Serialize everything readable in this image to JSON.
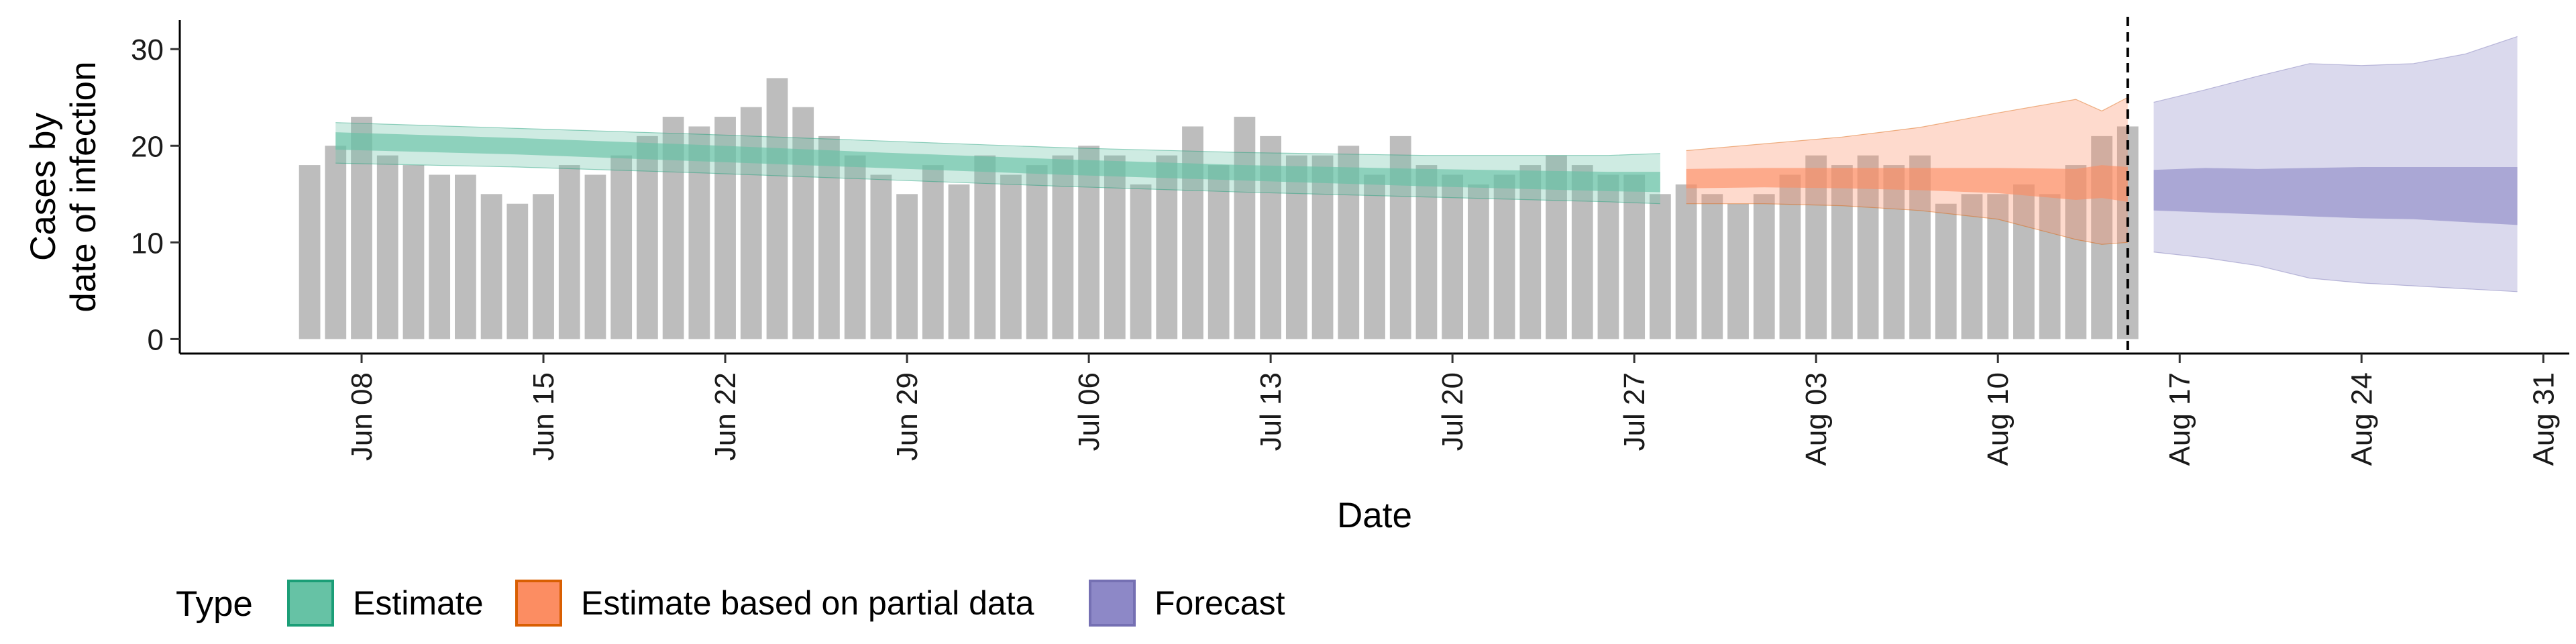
{
  "chart_data": {
    "type": "bar",
    "title": "",
    "xlabel": "Date",
    "ylabel": [
      "Cases by",
      "date of infection"
    ],
    "ylim": [
      -1.5,
      33
    ],
    "yticks": [
      0,
      10,
      20,
      30
    ],
    "xlim": [
      "2020-06-01",
      "2020-09-01"
    ],
    "xticks": [
      {
        "date": "2020-06-08",
        "label": "Jun 08"
      },
      {
        "date": "2020-06-15",
        "label": "Jun 15"
      },
      {
        "date": "2020-06-22",
        "label": "Jun 22"
      },
      {
        "date": "2020-06-29",
        "label": "Jun 29"
      },
      {
        "date": "2020-07-06",
        "label": "Jul 06"
      },
      {
        "date": "2020-07-13",
        "label": "Jul 13"
      },
      {
        "date": "2020-07-20",
        "label": "Jul 20"
      },
      {
        "date": "2020-07-27",
        "label": "Jul 27"
      },
      {
        "date": "2020-08-03",
        "label": "Aug 03"
      },
      {
        "date": "2020-08-10",
        "label": "Aug 10"
      },
      {
        "date": "2020-08-17",
        "label": "Aug 17"
      },
      {
        "date": "2020-08-24",
        "label": "Aug 24"
      },
      {
        "date": "2020-08-31",
        "label": "Aug 31"
      }
    ],
    "grid": false,
    "legend_position": "bottom-left",
    "legend_title": "Type",
    "forecast_date": "2020-08-15",
    "bars": {
      "color": "#bdbdbd",
      "start": "2020-06-06",
      "values": [
        18,
        20,
        23,
        19,
        18,
        17,
        17,
        15,
        14,
        15,
        18,
        17,
        19,
        21,
        23,
        22,
        23,
        24,
        27,
        24,
        21,
        19,
        17,
        15,
        18,
        16,
        19,
        17,
        18,
        19,
        20,
        19,
        16,
        19,
        22,
        18,
        23,
        21,
        19,
        19,
        20,
        17,
        21,
        18,
        17,
        16,
        17,
        18,
        19,
        18,
        17,
        17,
        15,
        16,
        15,
        14,
        15,
        17,
        19,
        18,
        19,
        18,
        19,
        14,
        15,
        15,
        16,
        15,
        18,
        21,
        22
      ]
    },
    "series": [
      {
        "name": "Estimate",
        "color": "#1b9e77",
        "fill": "#66c2a5",
        "dates": [
          "2020-06-07",
          "2020-06-14",
          "2020-06-21",
          "2020-06-28",
          "2020-07-05",
          "2020-07-12",
          "2020-07-19",
          "2020-07-26",
          "2020-07-28"
        ],
        "median": [
          20.6,
          20.0,
          19.3,
          18.5,
          17.8,
          17.2,
          16.7,
          16.3,
          16.3
        ],
        "lower_50": [
          19.6,
          19.1,
          18.4,
          17.7,
          17.0,
          16.4,
          15.8,
          15.3,
          15.2
        ],
        "upper_50": [
          21.4,
          20.8,
          20.1,
          19.3,
          18.6,
          18.0,
          17.6,
          17.3,
          17.3
        ],
        "lower_90": [
          18.2,
          17.8,
          17.2,
          16.5,
          15.8,
          15.2,
          14.7,
          14.2,
          14.0
        ],
        "upper_90": [
          22.4,
          21.8,
          21.2,
          20.5,
          19.8,
          19.3,
          19.0,
          19.0,
          19.2
        ]
      },
      {
        "name": "Estimate based on partial data",
        "color": "#d95f02",
        "fill": "#fc8d62",
        "dates": [
          "2020-07-29",
          "2020-08-01",
          "2020-08-04",
          "2020-08-07",
          "2020-08-10",
          "2020-08-13",
          "2020-08-14",
          "2020-08-15"
        ],
        "median": [
          16.5,
          16.6,
          16.6,
          16.5,
          16.3,
          16.0,
          16.3,
          16.0
        ],
        "lower_50": [
          15.6,
          15.7,
          15.6,
          15.4,
          15.1,
          14.4,
          14.6,
          14.2
        ],
        "upper_50": [
          17.6,
          17.7,
          17.7,
          17.7,
          17.7,
          17.6,
          18.0,
          17.8
        ],
        "lower_90": [
          14.0,
          14.0,
          13.8,
          13.3,
          12.4,
          10.3,
          9.8,
          10.0
        ],
        "upper_90": [
          19.5,
          20.2,
          20.9,
          21.9,
          23.4,
          24.8,
          23.6,
          25.0
        ]
      },
      {
        "name": "Forecast",
        "color": "#7570b3",
        "fill": "#8d88c7",
        "dates": [
          "2020-08-16",
          "2020-08-18",
          "2020-08-20",
          "2020-08-22",
          "2020-08-24",
          "2020-08-26",
          "2020-08-28",
          "2020-08-30"
        ],
        "median": [
          15.5,
          15.6,
          15.3,
          15.2,
          15.0,
          14.9,
          14.8,
          14.8
        ],
        "lower_50": [
          13.3,
          13.1,
          12.9,
          12.7,
          12.5,
          12.4,
          12.1,
          11.8
        ],
        "upper_50": [
          17.5,
          17.7,
          17.6,
          17.7,
          17.8,
          17.8,
          17.8,
          17.8
        ],
        "lower_90": [
          9.0,
          8.4,
          7.6,
          6.3,
          5.8,
          5.5,
          5.2,
          4.9
        ],
        "upper_90": [
          24.5,
          25.8,
          27.2,
          28.5,
          28.3,
          28.5,
          29.5,
          31.3
        ]
      }
    ]
  }
}
